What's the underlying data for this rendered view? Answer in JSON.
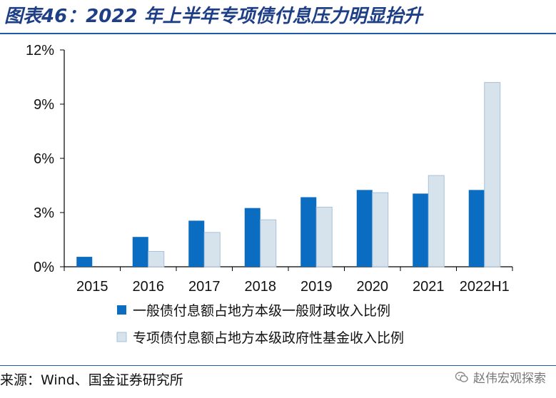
{
  "header": {
    "title": "图表46：2022 年上半年专项债付息压力明显抬升"
  },
  "footer": {
    "source": "来源：Wind、国金证券研究所",
    "watermark": "赵伟宏观探索"
  },
  "colors": {
    "series1": "#0a6dc2",
    "series2": "#d6e2ec",
    "series2_border": "#a9c2d6",
    "title": "#1e3f85",
    "rule": "#1e5aa8"
  },
  "chart_data": {
    "type": "bar",
    "categories": [
      "2015",
      "2016",
      "2017",
      "2018",
      "2019",
      "2020",
      "2021",
      "2022H1"
    ],
    "series": [
      {
        "name": "一般债付息额占地方本级一般财政收入比例",
        "values": [
          0.55,
          1.65,
          2.55,
          3.25,
          3.85,
          4.25,
          4.05,
          4.25
        ]
      },
      {
        "name": "专项债付息额占地方本级政府性基金收入比例",
        "values": [
          null,
          0.85,
          1.9,
          2.6,
          3.3,
          4.1,
          5.05,
          10.2
        ]
      }
    ],
    "ylim": [
      0,
      12
    ],
    "yticks": [
      0,
      3,
      6,
      9,
      12
    ],
    "ytick_labels": [
      "0%",
      "3%",
      "6%",
      "9%",
      "12%"
    ],
    "grid": false,
    "legend_position": "bottom"
  }
}
